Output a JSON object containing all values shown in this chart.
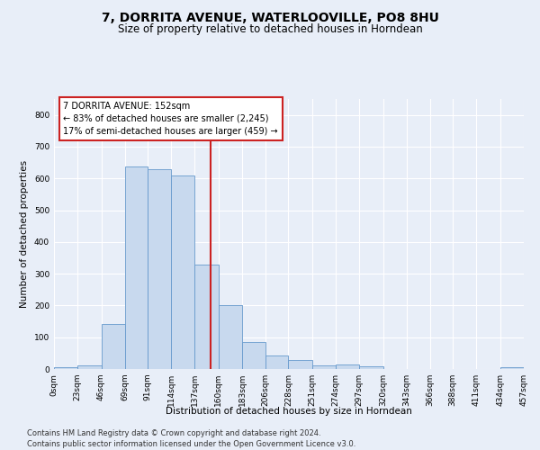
{
  "title": "7, DORRITA AVENUE, WATERLOOVILLE, PO8 8HU",
  "subtitle": "Size of property relative to detached houses in Horndean",
  "xlabel": "Distribution of detached houses by size in Horndean",
  "ylabel": "Number of detached properties",
  "footnote1": "Contains HM Land Registry data © Crown copyright and database right 2024.",
  "footnote2": "Contains public sector information licensed under the Open Government Licence v3.0.",
  "annotation_line1": "7 DORRITA AVENUE: 152sqm",
  "annotation_line2": "← 83% of detached houses are smaller (2,245)",
  "annotation_line3": "17% of semi-detached houses are larger (459) →",
  "bar_color": "#c8d9ee",
  "bar_edge_color": "#6699cc",
  "ref_line_color": "#cc2222",
  "ref_line_x": 152,
  "bins": [
    0,
    23,
    46,
    69,
    91,
    114,
    137,
    160,
    183,
    206,
    228,
    251,
    274,
    297,
    320,
    343,
    366,
    388,
    411,
    434,
    457
  ],
  "bin_labels": [
    "0sqm",
    "23sqm",
    "46sqm",
    "69sqm",
    "91sqm",
    "114sqm",
    "137sqm",
    "160sqm",
    "183sqm",
    "206sqm",
    "228sqm",
    "251sqm",
    "274sqm",
    "297sqm",
    "320sqm",
    "343sqm",
    "366sqm",
    "388sqm",
    "411sqm",
    "434sqm",
    "457sqm"
  ],
  "counts": [
    7,
    10,
    143,
    637,
    630,
    610,
    330,
    200,
    85,
    42,
    27,
    12,
    13,
    9,
    0,
    0,
    0,
    0,
    0,
    5
  ],
  "ylim": [
    0,
    850
  ],
  "yticks": [
    0,
    100,
    200,
    300,
    400,
    500,
    600,
    700,
    800
  ],
  "figsize": [
    6.0,
    5.0
  ],
  "dpi": 100,
  "bg_color": "#e8eef8",
  "plot_bg_color": "#e8eef8",
  "grid_color": "#ffffff",
  "title_fontsize": 10,
  "subtitle_fontsize": 8.5,
  "axis_label_fontsize": 7.5,
  "tick_fontsize": 6.5,
  "annotation_fontsize": 7.0,
  "footnote_fontsize": 6.0
}
